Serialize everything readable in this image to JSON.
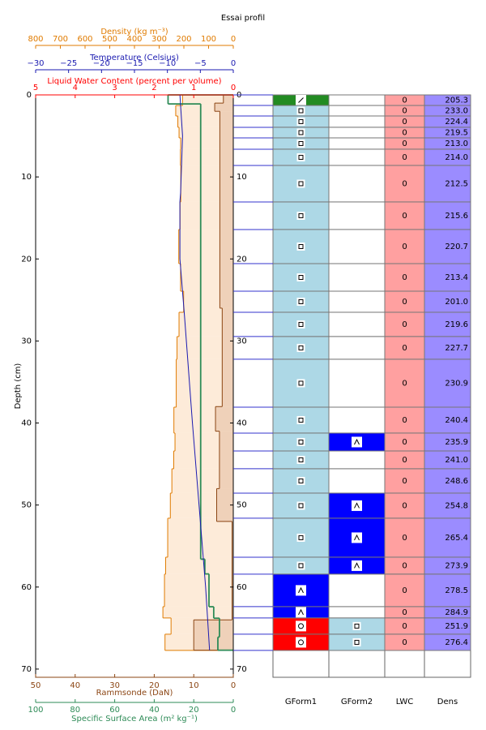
{
  "chart_data": {
    "type": "snow-profile",
    "title": "Essai profil",
    "ylabel": "Depth (cm)",
    "ylim": [
      0,
      71
    ],
    "yticks": [
      0,
      10,
      20,
      30,
      40,
      50,
      60,
      70
    ],
    "density_axis": {
      "label": "Density (kg m⁻³)",
      "xlim": [
        800,
        0
      ],
      "xticks": [
        800,
        700,
        600,
        500,
        400,
        300,
        200,
        100,
        0
      ],
      "color": "#e07b00",
      "fill": "#fdebd9"
    },
    "temperature": {
      "label": "Temperature (Celsius)",
      "xlim": [
        -30,
        0
      ],
      "xticks": [
        {
          "value": -30,
          "label": "−30"
        },
        {
          "value": -25,
          "label": "−25"
        },
        {
          "value": -20,
          "label": "−20"
        },
        {
          "value": -15,
          "label": "−15"
        },
        {
          "value": -10,
          "label": "−10"
        },
        {
          "value": -5,
          "label": "−5"
        },
        0
      ],
      "color": "#1a1ab0",
      "depth": [
        0,
        5,
        12,
        13,
        20,
        27,
        40,
        50,
        60,
        67.7
      ],
      "values": [
        -8.1,
        -7.7,
        -8.0,
        -8.1,
        -8.1,
        -7.4,
        -6.2,
        -5.2,
        -4.2,
        -3.6
      ]
    },
    "lwc_axis": {
      "label": "Liquid Water Content (percent per volume)",
      "xlim": [
        5,
        0
      ],
      "xticks": [
        5,
        4,
        3,
        2,
        1,
        0
      ],
      "color": "#ff0000"
    },
    "rammsonde": {
      "label": "Rammsonde (DaN)",
      "xlim": [
        50,
        0
      ],
      "xticks": [
        50,
        40,
        30,
        20,
        10,
        0
      ],
      "color": "#8b4513",
      "fill": "#efd1b9",
      "bounds": [
        0,
        1,
        2,
        26,
        38,
        41,
        48,
        52,
        64,
        67.7
      ],
      "values": [
        2.5,
        4.7,
        3.4,
        2.8,
        4.5,
        3.5,
        4.2,
        0.3,
        10
      ]
    },
    "ssa": {
      "label": "Specific Surface Area (m² kg⁻¹)",
      "xlim": [
        100,
        0
      ],
      "xticks": [
        100,
        80,
        60,
        40,
        20,
        0
      ],
      "color": "#2e8b57",
      "bounds": [
        0,
        1.1,
        56.6,
        58.4,
        62.4,
        63.8,
        66.1,
        67.7
      ],
      "values": [
        33,
        16.5,
        14.4,
        12.3,
        9.9,
        7,
        7.8
      ]
    },
    "layers": {
      "columns": [
        "GForm1",
        "GForm2",
        "LWC",
        "Dens"
      ],
      "bounds": [
        0,
        1.29,
        2.57,
        3.95,
        5.24,
        6.62,
        8.6,
        13.05,
        16.41,
        20.57,
        23.93,
        26.5,
        29.46,
        32.23,
        38.07,
        41.23,
        43.41,
        45.58,
        48.55,
        51.61,
        56.36,
        58.43,
        62.39,
        63.77,
        65.75,
        67.73
      ],
      "gform1_color": [
        "#228b22",
        "#add8e6",
        "#add8e6",
        "#add8e6",
        "#add8e6",
        "#add8e6",
        "#add8e6",
        "#add8e6",
        "#add8e6",
        "#add8e6",
        "#add8e6",
        "#add8e6",
        "#add8e6",
        "#add8e6",
        "#add8e6",
        "#add8e6",
        "#add8e6",
        "#add8e6",
        "#add8e6",
        "#add8e6",
        "#add8e6",
        "#0000ff",
        "#0000ff",
        "#ff0000",
        "#ff0000"
      ],
      "gform1_symbol": [
        "slash",
        "square",
        "square",
        "square",
        "square",
        "square",
        "square",
        "square",
        "square",
        "square",
        "square",
        "square",
        "square",
        "square",
        "square",
        "square",
        "square",
        "square",
        "square",
        "square",
        "square",
        "caret",
        "caret",
        "circle",
        "circle"
      ],
      "gform2_color": [
        "#ffffff",
        "#ffffff",
        "#ffffff",
        "#ffffff",
        "#ffffff",
        "#ffffff",
        "#ffffff",
        "#ffffff",
        "#ffffff",
        "#ffffff",
        "#ffffff",
        "#ffffff",
        "#ffffff",
        "#ffffff",
        "#ffffff",
        "#0000ff",
        "#ffffff",
        "#ffffff",
        "#0000ff",
        "#0000ff",
        "#0000ff",
        "#ffffff",
        "#ffffff",
        "#add8e6",
        "#add8e6"
      ],
      "gform2_symbol": [
        null,
        null,
        null,
        null,
        null,
        null,
        null,
        null,
        null,
        null,
        null,
        null,
        null,
        null,
        null,
        "caret",
        null,
        null,
        "caret",
        "caret",
        "caret",
        null,
        null,
        "square",
        "square"
      ],
      "lwc": [
        0,
        0,
        0,
        0,
        0,
        0,
        0,
        0,
        0,
        0,
        0,
        0,
        0,
        0,
        0,
        0,
        0,
        0,
        0,
        0,
        0,
        0,
        0,
        0,
        0
      ],
      "lwc_color": "#ffa0a0",
      "density": [
        205.3,
        233.0,
        224.4,
        219.5,
        213.0,
        214.0,
        212.5,
        215.6,
        220.7,
        213.4,
        201.0,
        219.6,
        227.7,
        230.9,
        240.4,
        235.9,
        241.0,
        248.6,
        254.8,
        265.4,
        273.9,
        278.5,
        284.9,
        251.9,
        276.4
      ],
      "density_labels": [
        "205.3",
        "233.0",
        "224.4",
        "219.5",
        "213.0",
        "214.0",
        "212.5",
        "215.6",
        "220.7",
        "213.4",
        "201.0",
        "219.6",
        "227.7",
        "230.9",
        "240.4",
        "235.9",
        "241.0",
        "248.6",
        "254.8",
        "265.4",
        "273.9",
        "278.5",
        "284.9",
        "251.9",
        "276.4"
      ],
      "dens_color": "#9b8cff",
      "connector_color": "#3333cc"
    }
  }
}
